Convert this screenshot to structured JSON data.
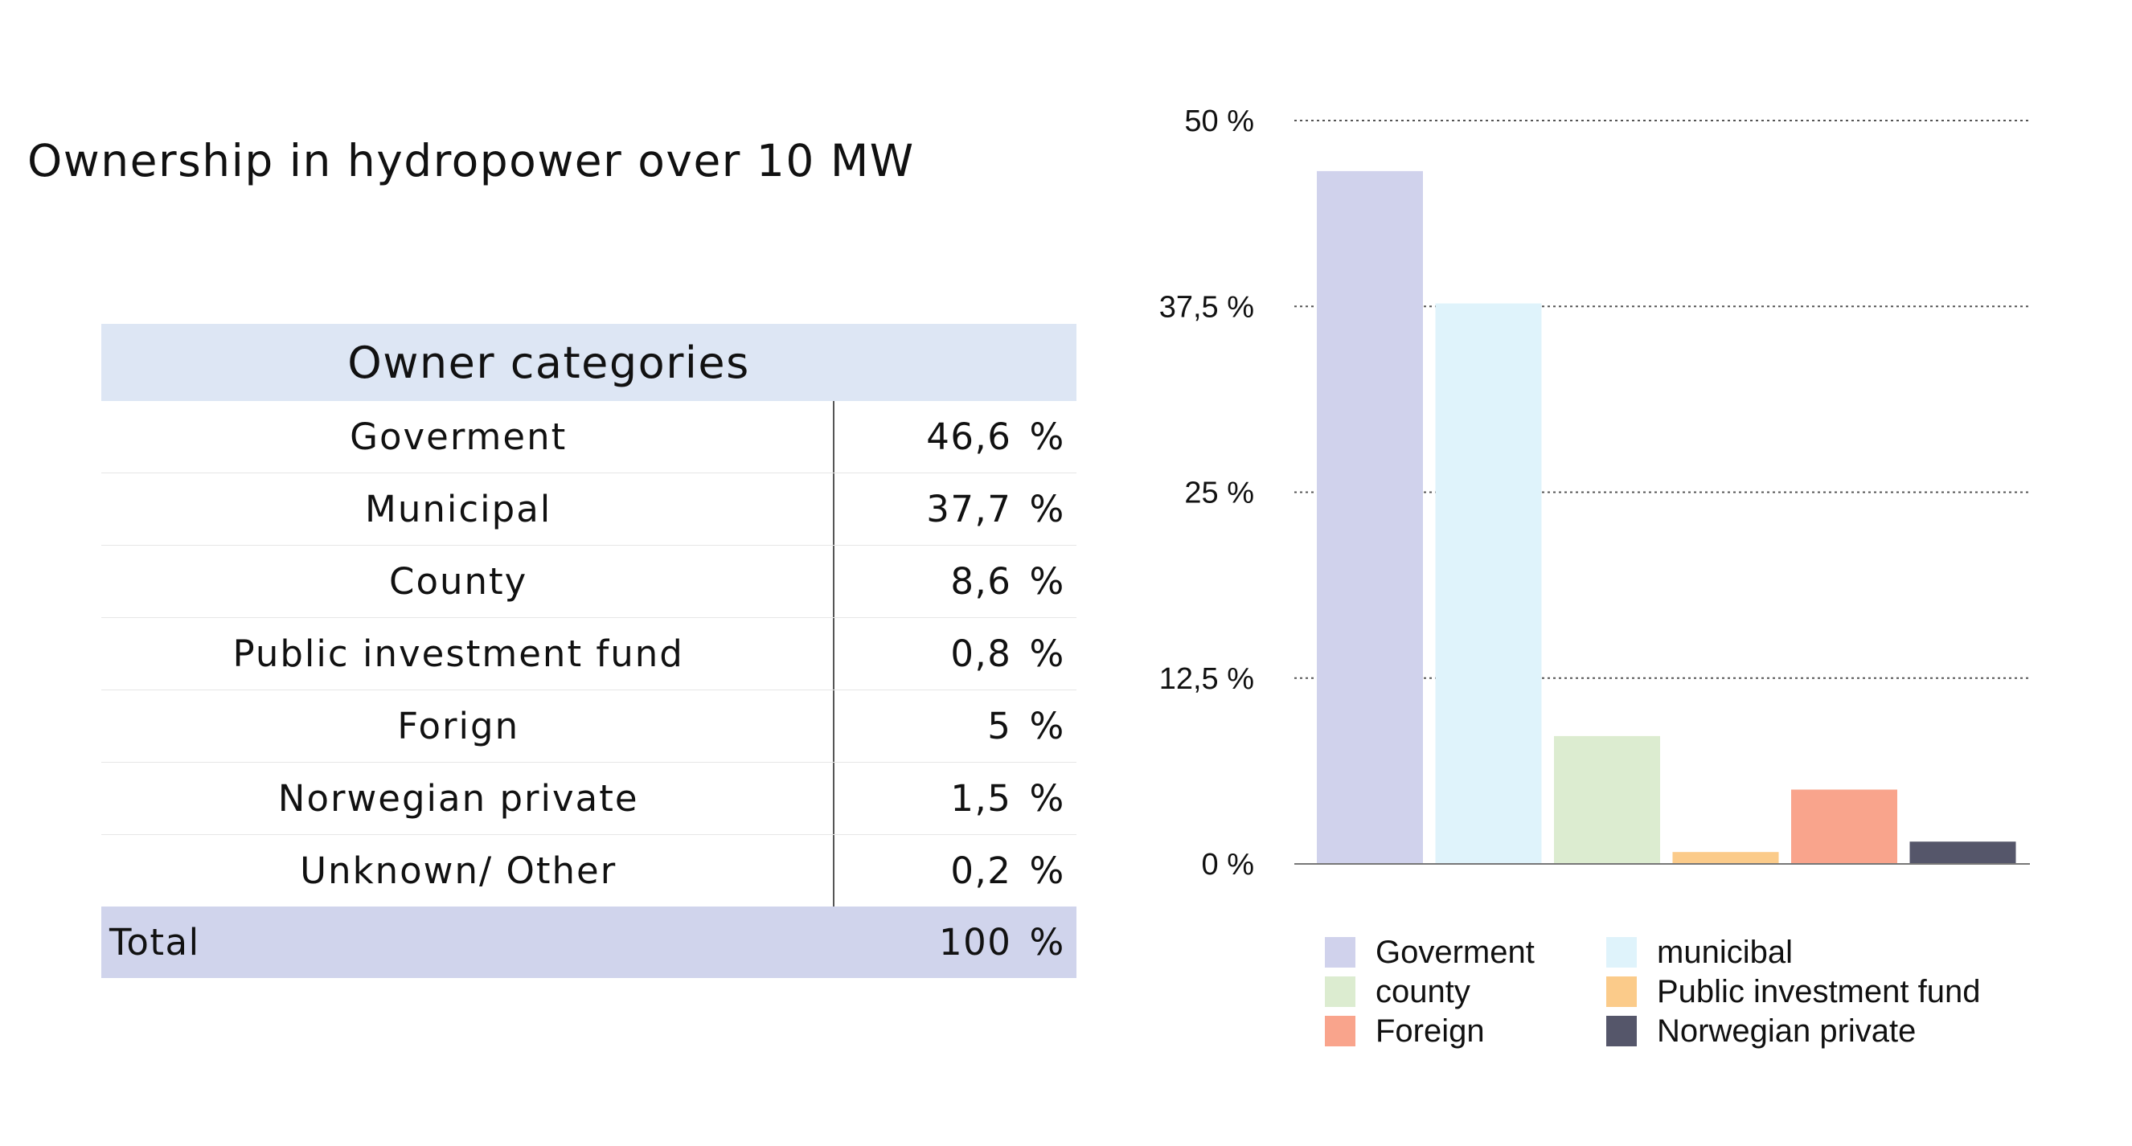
{
  "title": "Ownership in hydropower over 10 MW",
  "table": {
    "header": "Owner categories",
    "percent_sign": "%",
    "rows": [
      {
        "name": "Goverment",
        "value": "46,6"
      },
      {
        "name": "Municipal",
        "value": "37,7"
      },
      {
        "name": "County",
        "value": "8,6"
      },
      {
        "name": "Public investment fund",
        "value": "0,8"
      },
      {
        "name": "Forign",
        "value": "5"
      },
      {
        "name": "Norwegian private",
        "value": "1,5"
      },
      {
        "name": "Unknown/ Other",
        "value": "0,2"
      }
    ],
    "total": {
      "label": "Total",
      "value": "100"
    }
  },
  "chart_data": {
    "type": "bar",
    "categories": [
      "Goverment",
      "municibal",
      "county",
      "Public investment fund",
      "Foreign",
      "Norwegian private"
    ],
    "values": [
      46.6,
      37.7,
      8.6,
      0.8,
      5,
      1.5
    ],
    "colors": [
      "#d0d2ec",
      "#dff3fb",
      "#dcecd0",
      "#fbcb8a",
      "#f9a48c",
      "#55566a"
    ],
    "ylim": [
      0,
      50
    ],
    "yticks": [
      0,
      12.5,
      25,
      37.5,
      50
    ],
    "ytick_labels": [
      "0 %",
      "12,5 %",
      "25 %",
      "37,5 %",
      "50 %"
    ],
    "grid": "dotted horizontal",
    "legend": {
      "placement": "bottom",
      "columns": 2,
      "order": [
        0,
        1,
        2,
        3,
        4,
        5
      ]
    }
  }
}
